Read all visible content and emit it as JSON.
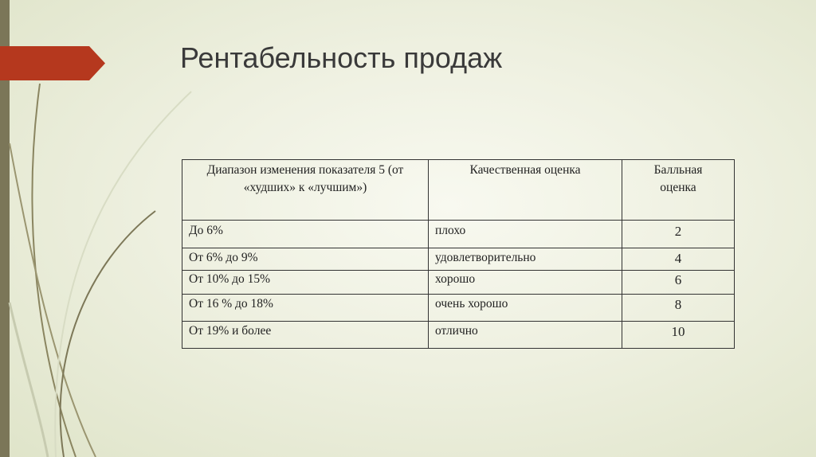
{
  "slide": {
    "title": "Рентабельность продаж"
  },
  "colors": {
    "sidebar": "#7b7658",
    "banner": "#b5381e",
    "background": "#eef0e0"
  },
  "table": {
    "headers": [
      "Диапазон изменения показателя 5 (от «худших» к «лучшим»)",
      "Качественная оценка",
      "Балльная оценка"
    ],
    "rows": [
      [
        "До 6%",
        "плохо",
        "2"
      ],
      [
        "От 6% до 9%",
        "удовлетворительно",
        "4"
      ],
      [
        "От 10% до 15%",
        "хорошо",
        "6"
      ],
      [
        "От 16 % до 18%",
        "очень хорошо",
        "8"
      ],
      [
        "От 19% и более",
        "отлично",
        "10"
      ]
    ]
  }
}
